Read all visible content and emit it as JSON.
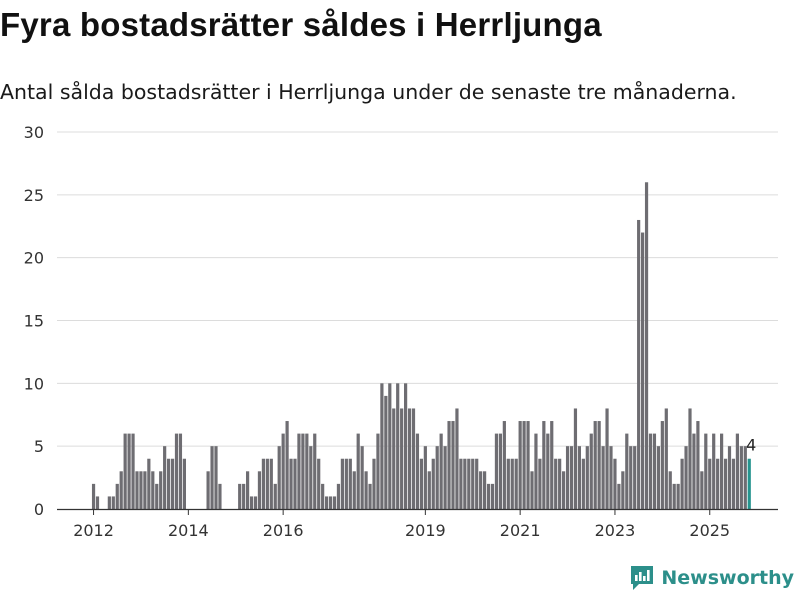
{
  "title": "Fyra bostadsrätter såldes i Herrljunga",
  "subtitle": "Antal sålda bostadsrätter i Herrljunga under de senaste tre månaderna.",
  "brand": "Newsworthy",
  "colors": {
    "bar": "#6e6d72",
    "highlight": "#26958f",
    "grid": "#dcdcdc",
    "brand": "#2c8f8a"
  },
  "chart_data": {
    "type": "bar",
    "title": "Fyra bostadsrätter såldes i Herrljunga",
    "xlabel": "",
    "ylabel": "",
    "ylim": [
      0,
      30
    ],
    "yticks": [
      0,
      5,
      10,
      15,
      20,
      25,
      30
    ],
    "start": "2011-06",
    "xticks": [
      {
        "label": "2012",
        "index": 7
      },
      {
        "label": "2014",
        "index": 31
      },
      {
        "label": "2016",
        "index": 55
      },
      {
        "label": "2019",
        "index": 91
      },
      {
        "label": "2021",
        "index": 115
      },
      {
        "label": "2023",
        "index": 139
      },
      {
        "label": "2025",
        "index": 163
      }
    ],
    "values": [
      0,
      0,
      0,
      0,
      0,
      0,
      0,
      2,
      1,
      0,
      0,
      1,
      1,
      2,
      3,
      6,
      6,
      6,
      3,
      3,
      3,
      4,
      3,
      2,
      3,
      5,
      4,
      4,
      6,
      6,
      4,
      0,
      0,
      0,
      0,
      0,
      3,
      5,
      5,
      2,
      0,
      0,
      0,
      0,
      2,
      2,
      3,
      1,
      1,
      3,
      4,
      4,
      4,
      2,
      5,
      6,
      7,
      4,
      4,
      6,
      6,
      6,
      5,
      6,
      4,
      2,
      1,
      1,
      1,
      2,
      4,
      4,
      4,
      3,
      6,
      5,
      3,
      2,
      4,
      6,
      10,
      9,
      10,
      8,
      10,
      8,
      10,
      8,
      8,
      6,
      4,
      5,
      3,
      4,
      5,
      6,
      5,
      7,
      7,
      8,
      4,
      4,
      4,
      4,
      4,
      3,
      3,
      2,
      2,
      6,
      6,
      7,
      4,
      4,
      4,
      7,
      7,
      7,
      3,
      6,
      4,
      7,
      6,
      7,
      4,
      4,
      3,
      5,
      5,
      8,
      5,
      4,
      5,
      6,
      7,
      7,
      5,
      8,
      5,
      4,
      2,
      3,
      6,
      5,
      5,
      23,
      22,
      26,
      6,
      6,
      5,
      7,
      8,
      3,
      2,
      2,
      4,
      5,
      8,
      6,
      7,
      3,
      6,
      4,
      6,
      4,
      6,
      4,
      5,
      4,
      6,
      5,
      5,
      4
    ],
    "highlight": {
      "index": 173,
      "value": 4,
      "label": "4"
    }
  }
}
